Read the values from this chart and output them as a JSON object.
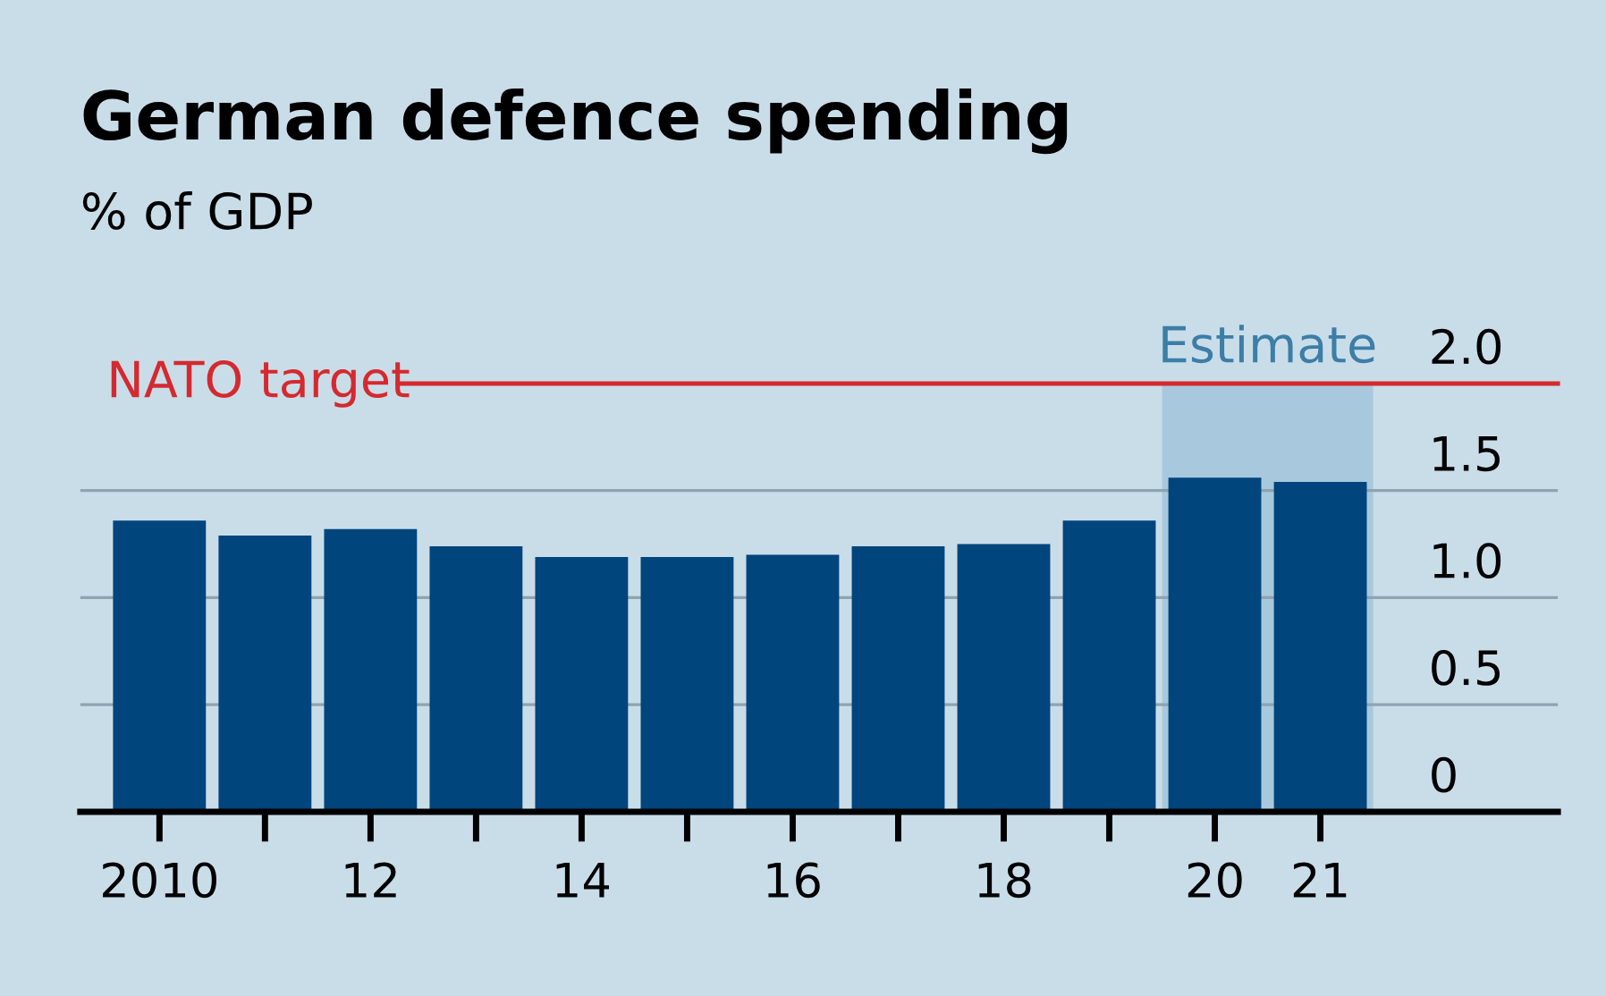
{
  "chart_data": {
    "type": "bar",
    "title": "German defence spending",
    "subtitle": "% of GDP",
    "categories": [
      "2010",
      null,
      "12",
      null,
      "14",
      null,
      "16",
      null,
      "18",
      null,
      "20",
      "21"
    ],
    "values": [
      1.36,
      1.29,
      1.32,
      1.24,
      1.19,
      1.19,
      1.2,
      1.24,
      1.25,
      1.36,
      1.56,
      1.54
    ],
    "color": "#00457c",
    "ylim": [
      0,
      2.0
    ],
    "yticks": [
      0,
      0.5,
      {
        "value": 1,
        "label": "1.0"
      },
      1.5,
      {
        "value": 2,
        "label": "2.0"
      }
    ],
    "grid": "y",
    "ref_lines": [
      {
        "axis": "y",
        "value": 2.0,
        "label": "NATO target",
        "color": "#d42a2f"
      }
    ],
    "bands": [
      {
        "axis": "x",
        "from": "20",
        "to": "21",
        "label": "Estimate",
        "color": "#a8c9dd"
      }
    ]
  }
}
